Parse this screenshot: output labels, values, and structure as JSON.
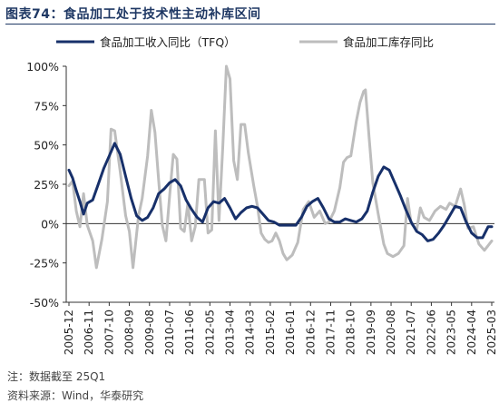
{
  "header": {
    "title": "图表74：食品加工处于技术性主动补库区间"
  },
  "footer": {
    "note": "注：数据截至 25Q1",
    "source": "资料来源：Wind，华泰研究"
  },
  "chart_data": {
    "type": "line",
    "title": "图表74：食品加工处于技术性主动补库区间",
    "xlabel": "",
    "ylabel": "",
    "ylim": [
      -50,
      100
    ],
    "yticks": [
      "-50%",
      "-25%",
      "0%",
      "25%",
      "50%",
      "75%",
      "100%"
    ],
    "ytick_values": [
      -50,
      -25,
      0,
      25,
      50,
      75,
      100
    ],
    "x_tick_labels": [
      "2005-12",
      "2006-11",
      "2007-10",
      "2008-09",
      "2009-08",
      "2010-07",
      "2011-06",
      "2012-05",
      "2013-04",
      "2014-03",
      "2015-02",
      "2016-01",
      "2016-12",
      "2017-11",
      "2018-10",
      "2019-09",
      "2020-08",
      "2021-07",
      "2022-06",
      "2023-05",
      "2024-04",
      "2025-03"
    ],
    "x_start": "2005-12",
    "x_end": "2025-03",
    "legend_position": "top",
    "grid": false,
    "series": [
      {
        "name": "食品加工收入同比（TFQ）",
        "color": "#17306a",
        "style": "solid-thick",
        "points": [
          [
            "2005-12",
            34
          ],
          [
            "2006-02",
            29
          ],
          [
            "2006-04",
            21
          ],
          [
            "2006-06",
            14
          ],
          [
            "2006-08",
            6
          ],
          [
            "2006-10",
            13
          ],
          [
            "2007-01",
            15
          ],
          [
            "2007-04",
            25
          ],
          [
            "2007-07",
            35
          ],
          [
            "2007-10",
            43
          ],
          [
            "2008-01",
            51
          ],
          [
            "2008-04",
            44
          ],
          [
            "2008-07",
            30
          ],
          [
            "2008-10",
            16
          ],
          [
            "2009-01",
            5
          ],
          [
            "2009-04",
            2
          ],
          [
            "2009-07",
            4
          ],
          [
            "2009-10",
            10
          ],
          [
            "2010-01",
            19
          ],
          [
            "2010-04",
            22
          ],
          [
            "2010-07",
            26
          ],
          [
            "2010-10",
            28
          ],
          [
            "2011-01",
            24
          ],
          [
            "2011-04",
            15
          ],
          [
            "2011-07",
            9
          ],
          [
            "2011-10",
            4
          ],
          [
            "2012-01",
            1
          ],
          [
            "2012-04",
            10
          ],
          [
            "2012-07",
            14
          ],
          [
            "2012-10",
            13
          ],
          [
            "2013-01",
            16
          ],
          [
            "2013-04",
            10
          ],
          [
            "2013-07",
            3
          ],
          [
            "2013-10",
            7
          ],
          [
            "2014-01",
            10
          ],
          [
            "2014-04",
            11
          ],
          [
            "2014-07",
            10
          ],
          [
            "2014-10",
            6
          ],
          [
            "2015-01",
            2
          ],
          [
            "2015-04",
            1
          ],
          [
            "2015-07",
            -1
          ],
          [
            "2015-10",
            -1
          ],
          [
            "2016-01",
            -1
          ],
          [
            "2016-04",
            -1
          ],
          [
            "2016-07",
            4
          ],
          [
            "2016-10",
            11
          ],
          [
            "2017-01",
            14
          ],
          [
            "2017-04",
            16
          ],
          [
            "2017-07",
            10
          ],
          [
            "2017-10",
            3
          ],
          [
            "2018-01",
            1
          ],
          [
            "2018-04",
            1
          ],
          [
            "2018-07",
            3
          ],
          [
            "2018-10",
            2
          ],
          [
            "2019-01",
            1
          ],
          [
            "2019-04",
            3
          ],
          [
            "2019-07",
            8
          ],
          [
            "2019-10",
            20
          ],
          [
            "2020-01",
            30
          ],
          [
            "2020-04",
            36
          ],
          [
            "2020-07",
            34
          ],
          [
            "2020-10",
            26
          ],
          [
            "2021-01",
            18
          ],
          [
            "2021-04",
            9
          ],
          [
            "2021-07",
            1
          ],
          [
            "2021-10",
            -5
          ],
          [
            "2022-01",
            -7
          ],
          [
            "2022-04",
            -11
          ],
          [
            "2022-07",
            -10
          ],
          [
            "2022-10",
            -6
          ],
          [
            "2023-01",
            -1
          ],
          [
            "2023-04",
            5
          ],
          [
            "2023-07",
            11
          ],
          [
            "2023-10",
            10
          ],
          [
            "2024-01",
            1
          ],
          [
            "2024-04",
            -6
          ],
          [
            "2024-07",
            -9
          ],
          [
            "2024-10",
            -9
          ],
          [
            "2025-01",
            -2
          ],
          [
            "2025-03",
            -2
          ]
        ]
      },
      {
        "name": "食品加工库存同比",
        "color": "#bdbdbd",
        "style": "solid-thick",
        "points": [
          [
            "2005-12",
            24
          ],
          [
            "2006-02",
            27
          ],
          [
            "2006-04",
            8
          ],
          [
            "2006-06",
            -2
          ],
          [
            "2006-08",
            19
          ],
          [
            "2006-10",
            -1
          ],
          [
            "2007-01",
            -11
          ],
          [
            "2007-03",
            -28
          ],
          [
            "2007-06",
            -10
          ],
          [
            "2007-09",
            14
          ],
          [
            "2007-11",
            60
          ],
          [
            "2008-01",
            59
          ],
          [
            "2008-04",
            33
          ],
          [
            "2008-07",
            5
          ],
          [
            "2008-09",
            -5
          ],
          [
            "2008-11",
            -28
          ],
          [
            "2009-02",
            5
          ],
          [
            "2009-04",
            16
          ],
          [
            "2009-07",
            43
          ],
          [
            "2009-09",
            72
          ],
          [
            "2009-11",
            58
          ],
          [
            "2010-01",
            28
          ],
          [
            "2010-03",
            -1
          ],
          [
            "2010-05",
            -11
          ],
          [
            "2010-07",
            18
          ],
          [
            "2010-09",
            44
          ],
          [
            "2010-11",
            41
          ],
          [
            "2011-01",
            -3
          ],
          [
            "2011-03",
            -5
          ],
          [
            "2011-05",
            13
          ],
          [
            "2011-07",
            -11
          ],
          [
            "2011-09",
            -2
          ],
          [
            "2011-11",
            28
          ],
          [
            "2012-02",
            28
          ],
          [
            "2012-04",
            -6
          ],
          [
            "2012-06",
            -4
          ],
          [
            "2012-08",
            59
          ],
          [
            "2012-10",
            2
          ],
          [
            "2012-12",
            48
          ],
          [
            "2013-02",
            100
          ],
          [
            "2013-04",
            92
          ],
          [
            "2013-06",
            40
          ],
          [
            "2013-08",
            28
          ],
          [
            "2013-10",
            63
          ],
          [
            "2013-12",
            63
          ],
          [
            "2014-02",
            45
          ],
          [
            "2014-05",
            24
          ],
          [
            "2014-07",
            11
          ],
          [
            "2014-09",
            -6
          ],
          [
            "2014-11",
            -10
          ],
          [
            "2015-01",
            -12
          ],
          [
            "2015-03",
            -11
          ],
          [
            "2015-05",
            -6
          ],
          [
            "2015-07",
            -11
          ],
          [
            "2015-09",
            -19
          ],
          [
            "2015-11",
            -23
          ],
          [
            "2016-02",
            -20
          ],
          [
            "2016-05",
            -12
          ],
          [
            "2016-08",
            9
          ],
          [
            "2016-11",
            14
          ],
          [
            "2017-02",
            4
          ],
          [
            "2017-05",
            8
          ],
          [
            "2017-08",
            0
          ],
          [
            "2017-10",
            1
          ],
          [
            "2018-01",
            8
          ],
          [
            "2018-04",
            23
          ],
          [
            "2018-06",
            39
          ],
          [
            "2018-08",
            42
          ],
          [
            "2018-10",
            43
          ],
          [
            "2019-01",
            65
          ],
          [
            "2019-03",
            77
          ],
          [
            "2019-05",
            84
          ],
          [
            "2019-06",
            85
          ],
          [
            "2019-08",
            55
          ],
          [
            "2019-10",
            26
          ],
          [
            "2020-01",
            6
          ],
          [
            "2020-04",
            -13
          ],
          [
            "2020-06",
            -19
          ],
          [
            "2020-09",
            -21
          ],
          [
            "2020-12",
            -19
          ],
          [
            "2021-03",
            -14
          ],
          [
            "2021-05",
            16
          ],
          [
            "2021-07",
            0
          ],
          [
            "2021-10",
            -4
          ],
          [
            "2021-12",
            10
          ],
          [
            "2022-02",
            4
          ],
          [
            "2022-05",
            2
          ],
          [
            "2022-08",
            8
          ],
          [
            "2022-11",
            11
          ],
          [
            "2023-02",
            9
          ],
          [
            "2023-04",
            13
          ],
          [
            "2023-07",
            11
          ],
          [
            "2023-10",
            22
          ],
          [
            "2023-12",
            12
          ],
          [
            "2024-02",
            -3
          ],
          [
            "2024-05",
            -2
          ],
          [
            "2024-08",
            -13
          ],
          [
            "2024-11",
            -17
          ],
          [
            "2025-03",
            -11
          ]
        ]
      }
    ]
  }
}
